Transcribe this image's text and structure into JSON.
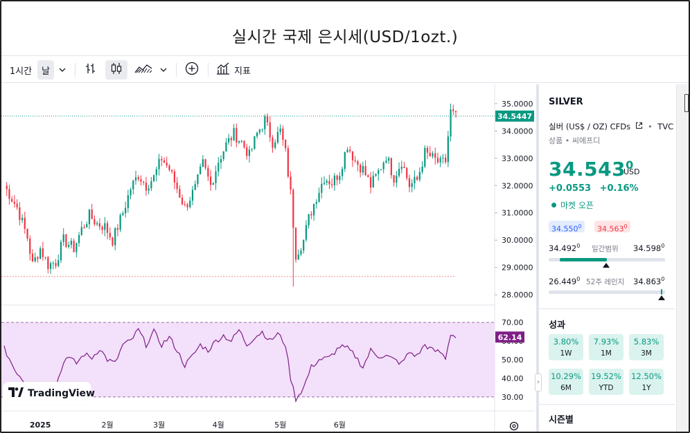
{
  "title": "실시간 국제 은시세(USD/1ozt.)",
  "toolbar": {
    "interval": "1시간",
    "range": "날",
    "indicators": "지표"
  },
  "side": {
    "symbol": "SILVER",
    "name": "실버 (US$ / OZ) CFDs",
    "source": "TVC",
    "category": "상품 • 씨에프디",
    "price_main": "34.543",
    "price_sup": "0",
    "currency": "USD",
    "change": "+0.0553",
    "change_pct": "+0.16%",
    "market_status": "마켓 오픈",
    "bid_main": "34.550",
    "bid_sup": "0",
    "ask_main": "34.563",
    "ask_sup": "0",
    "day_range": {
      "label": "일간범위",
      "low_main": "34.492",
      "low_sup": "0",
      "high_main": "34.598",
      "high_sup": "0"
    },
    "year_range": {
      "label": "52주 레인지",
      "low_main": "26.449",
      "low_sup": "0",
      "high_main": "34.863",
      "high_sup": "0"
    },
    "performance_title": "성과",
    "performance": [
      {
        "value": "3.80%",
        "label": "1W"
      },
      {
        "value": "7.93%",
        "label": "1M"
      },
      {
        "value": "5.83%",
        "label": "3M"
      },
      {
        "value": "10.29%",
        "label": "6M"
      },
      {
        "value": "19.52%",
        "label": "YTD"
      },
      {
        "value": "12.50%",
        "label": "1Y"
      }
    ],
    "seasonal_title": "시즌별"
  },
  "logo_text": "TradingView",
  "colors": {
    "up": "#089981",
    "down": "#f23645",
    "rsi": "#7e1f86",
    "rsi_band": "#f3e0fa",
    "accent": "#2962ff"
  },
  "chart_data": [
    {
      "type": "candlestick",
      "current_price_label": "34.5447",
      "y_ticks": [
        "35.0000",
        "34.0000",
        "33.0000",
        "32.0000",
        "31.0000",
        "30.0000",
        "29.0000",
        "28.0000"
      ],
      "ylim": [
        27.7,
        35.3
      ],
      "x_ticks": [
        "2025",
        "2월",
        "3월",
        "4월",
        "5월",
        "6월"
      ],
      "current_price": 34.5447,
      "reference_low": 28.67,
      "key_points": [
        {
          "x": 0,
          "close": 32.0
        },
        {
          "x": 5,
          "close": 31.2
        },
        {
          "x": 9,
          "close": 30.1
        },
        {
          "x": 11,
          "close": 29.1
        },
        {
          "x": 14,
          "close": 29.7
        },
        {
          "x": 17,
          "close": 29.1
        },
        {
          "x": 20,
          "close": 29.2
        },
        {
          "x": 23,
          "close": 30.0
        },
        {
          "x": 27,
          "close": 29.7
        },
        {
          "x": 30,
          "close": 30.4
        },
        {
          "x": 33,
          "close": 30.9
        },
        {
          "x": 36,
          "close": 30.6
        },
        {
          "x": 39,
          "close": 30.5
        },
        {
          "x": 42,
          "close": 30.0
        },
        {
          "x": 46,
          "close": 31.0
        },
        {
          "x": 49,
          "close": 31.9
        },
        {
          "x": 52,
          "close": 32.4
        },
        {
          "x": 55,
          "close": 32.0
        },
        {
          "x": 58,
          "close": 32.3
        },
        {
          "x": 61,
          "close": 33.0
        },
        {
          "x": 64,
          "close": 32.6
        },
        {
          "x": 67,
          "close": 31.9
        },
        {
          "x": 70,
          "close": 31.2
        },
        {
          "x": 74,
          "close": 31.9
        },
        {
          "x": 77,
          "close": 32.8
        },
        {
          "x": 80,
          "close": 32.0
        },
        {
          "x": 83,
          "close": 32.9
        },
        {
          "x": 86,
          "close": 33.5
        },
        {
          "x": 89,
          "close": 33.9
        },
        {
          "x": 92,
          "close": 33.6
        },
        {
          "x": 95,
          "close": 33.1
        },
        {
          "x": 98,
          "close": 33.9
        },
        {
          "x": 101,
          "close": 34.4
        },
        {
          "x": 104,
          "close": 33.6
        },
        {
          "x": 107,
          "close": 34.0
        },
        {
          "x": 109,
          "close": 33.2
        },
        {
          "x": 111,
          "close": 31.7
        },
        {
          "x": 113,
          "close": 29.5
        },
        {
          "x": 116,
          "close": 30.0
        },
        {
          "x": 118,
          "close": 30.8
        },
        {
          "x": 121,
          "close": 31.6
        },
        {
          "x": 124,
          "close": 32.3
        },
        {
          "x": 127,
          "close": 32.1
        },
        {
          "x": 130,
          "close": 32.5
        },
        {
          "x": 133,
          "close": 33.5
        },
        {
          "x": 136,
          "close": 32.9
        },
        {
          "x": 139,
          "close": 32.6
        },
        {
          "x": 142,
          "close": 32.0
        },
        {
          "x": 145,
          "close": 32.5
        },
        {
          "x": 148,
          "close": 33.1
        },
        {
          "x": 151,
          "close": 32.3
        },
        {
          "x": 154,
          "close": 32.9
        },
        {
          "x": 157,
          "close": 32.0
        },
        {
          "x": 160,
          "close": 32.2
        },
        {
          "x": 163,
          "close": 33.2
        },
        {
          "x": 166,
          "close": 33.0
        },
        {
          "x": 169,
          "close": 32.8
        },
        {
          "x": 171,
          "close": 32.9
        },
        {
          "x": 173,
          "close": 34.7
        },
        {
          "x": 175,
          "close": 34.5
        }
      ]
    },
    {
      "type": "line",
      "name": "RSI",
      "current_value_label": "62.14",
      "y_ticks": [
        "70.00",
        "60.00",
        "50.00",
        "40.00",
        "30.00"
      ],
      "ylim": [
        27,
        73
      ],
      "band": [
        30,
        70
      ],
      "current_value": 62.14,
      "points": [
        {
          "x": 0,
          "y": 56
        },
        {
          "x": 4,
          "y": 45
        },
        {
          "x": 8,
          "y": 38
        },
        {
          "x": 11,
          "y": 33
        },
        {
          "x": 14,
          "y": 38
        },
        {
          "x": 17,
          "y": 33
        },
        {
          "x": 20,
          "y": 36
        },
        {
          "x": 24,
          "y": 52
        },
        {
          "x": 28,
          "y": 48
        },
        {
          "x": 31,
          "y": 53
        },
        {
          "x": 34,
          "y": 51
        },
        {
          "x": 37,
          "y": 56
        },
        {
          "x": 40,
          "y": 50
        },
        {
          "x": 43,
          "y": 48
        },
        {
          "x": 46,
          "y": 58
        },
        {
          "x": 49,
          "y": 60
        },
        {
          "x": 52,
          "y": 66
        },
        {
          "x": 55,
          "y": 58
        },
        {
          "x": 58,
          "y": 65
        },
        {
          "x": 61,
          "y": 58
        },
        {
          "x": 64,
          "y": 62
        },
        {
          "x": 67,
          "y": 55
        },
        {
          "x": 70,
          "y": 47
        },
        {
          "x": 73,
          "y": 52
        },
        {
          "x": 76,
          "y": 58
        },
        {
          "x": 79,
          "y": 55
        },
        {
          "x": 82,
          "y": 60
        },
        {
          "x": 85,
          "y": 63
        },
        {
          "x": 88,
          "y": 60
        },
        {
          "x": 91,
          "y": 66
        },
        {
          "x": 94,
          "y": 58
        },
        {
          "x": 97,
          "y": 62
        },
        {
          "x": 100,
          "y": 65
        },
        {
          "x": 103,
          "y": 60
        },
        {
          "x": 106,
          "y": 64
        },
        {
          "x": 109,
          "y": 58
        },
        {
          "x": 111,
          "y": 40
        },
        {
          "x": 113,
          "y": 29
        },
        {
          "x": 116,
          "y": 35
        },
        {
          "x": 119,
          "y": 46
        },
        {
          "x": 122,
          "y": 50
        },
        {
          "x": 126,
          "y": 51
        },
        {
          "x": 130,
          "y": 57
        },
        {
          "x": 133,
          "y": 56
        },
        {
          "x": 136,
          "y": 52
        },
        {
          "x": 139,
          "y": 46
        },
        {
          "x": 142,
          "y": 55
        },
        {
          "x": 145,
          "y": 52
        },
        {
          "x": 148,
          "y": 52
        },
        {
          "x": 151,
          "y": 50
        },
        {
          "x": 154,
          "y": 48
        },
        {
          "x": 157,
          "y": 54
        },
        {
          "x": 160,
          "y": 52
        },
        {
          "x": 163,
          "y": 58
        },
        {
          "x": 166,
          "y": 55
        },
        {
          "x": 169,
          "y": 54
        },
        {
          "x": 171,
          "y": 51
        },
        {
          "x": 173,
          "y": 64
        },
        {
          "x": 175,
          "y": 62
        }
      ]
    }
  ]
}
